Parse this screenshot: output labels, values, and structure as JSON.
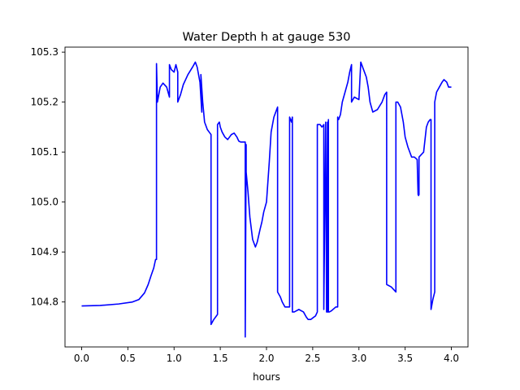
{
  "chart_data": {
    "type": "line",
    "title": "Water Depth h at gauge 530",
    "xlabel": "hours",
    "ylabel": "",
    "xlim": [
      -0.18,
      4.18
    ],
    "ylim": [
      104.71,
      105.31
    ],
    "xticks": [
      0.0,
      0.5,
      1.0,
      1.5,
      2.0,
      2.5,
      3.0,
      3.5,
      4.0
    ],
    "xtick_labels": [
      "0.0",
      "0.5",
      "1.0",
      "1.5",
      "2.0",
      "2.5",
      "3.0",
      "3.5",
      "4.0"
    ],
    "yticks": [
      104.8,
      104.9,
      105.0,
      105.1,
      105.2,
      105.3
    ],
    "ytick_labels": [
      "104.8",
      "104.9",
      "105.0",
      "105.1",
      "105.2",
      "105.3"
    ],
    "grid": false,
    "series": [
      {
        "color": "#0000ff",
        "x": [
          0.0,
          0.2,
          0.4,
          0.55,
          0.62,
          0.68,
          0.72,
          0.75,
          0.78,
          0.8,
          0.81,
          0.81,
          0.82,
          0.85,
          0.88,
          0.92,
          0.95,
          0.95,
          0.97,
          1.0,
          1.02,
          1.04,
          1.04,
          1.07,
          1.1,
          1.15,
          1.2,
          1.23,
          1.25,
          1.28,
          1.3,
          1.29,
          1.31,
          1.33,
          1.36,
          1.38,
          1.4,
          1.4,
          1.43,
          1.45,
          1.47,
          1.47,
          1.49,
          1.5,
          1.52,
          1.55,
          1.58,
          1.6,
          1.62,
          1.65,
          1.68,
          1.7,
          1.72,
          1.75,
          1.77,
          1.77,
          1.78,
          1.78,
          1.8,
          1.82,
          1.85,
          1.88,
          1.9,
          1.93,
          1.95,
          1.97,
          2.0,
          2.03,
          2.05,
          2.08,
          2.1,
          2.12,
          2.12,
          2.15,
          2.17,
          2.2,
          2.22,
          2.25,
          2.25,
          2.27,
          2.28,
          2.28,
          2.3,
          2.35,
          2.4,
          2.43,
          2.45,
          2.48,
          2.5,
          2.53,
          2.55,
          2.55,
          2.58,
          2.6,
          2.62,
          2.62,
          2.64,
          2.65,
          2.66,
          2.66,
          2.67,
          2.67,
          2.68,
          2.68,
          2.7,
          2.75,
          2.77,
          2.77,
          2.78,
          2.8,
          2.82,
          2.85,
          2.88,
          2.9,
          2.92,
          2.92,
          2.95,
          3.0,
          3.02,
          3.05,
          3.08,
          3.1,
          3.12,
          3.15,
          3.2,
          3.25,
          3.28,
          3.3,
          3.3,
          3.35,
          3.4,
          3.4,
          3.42,
          3.45,
          3.48,
          3.5,
          3.53,
          3.57,
          3.6,
          3.63,
          3.64,
          3.645,
          3.65,
          3.65,
          3.7,
          3.73,
          3.75,
          3.77,
          3.78,
          3.78,
          3.8,
          3.82,
          3.82,
          3.84,
          3.87,
          3.9,
          3.92,
          3.95,
          3.97,
          4.0
        ],
        "y": [
          104.792,
          104.793,
          104.796,
          104.8,
          104.805,
          104.818,
          104.835,
          104.852,
          104.868,
          104.885,
          104.885,
          105.277,
          105.2,
          105.23,
          105.238,
          105.23,
          105.21,
          105.275,
          105.265,
          105.26,
          105.275,
          105.26,
          105.2,
          105.215,
          105.235,
          105.255,
          105.27,
          105.28,
          105.27,
          105.24,
          105.18,
          105.255,
          105.2,
          105.16,
          105.145,
          105.14,
          105.135,
          104.755,
          104.765,
          104.77,
          104.775,
          105.155,
          105.16,
          105.15,
          105.14,
          105.13,
          105.125,
          105.13,
          105.135,
          105.138,
          105.13,
          105.122,
          105.12,
          105.12,
          105.12,
          104.73,
          105.115,
          105.06,
          105.02,
          104.97,
          104.925,
          104.91,
          104.92,
          104.945,
          104.96,
          104.98,
          105.0,
          105.08,
          105.14,
          105.17,
          105.18,
          105.19,
          104.82,
          104.81,
          104.8,
          104.79,
          104.79,
          104.79,
          105.17,
          105.16,
          105.17,
          104.78,
          104.78,
          104.785,
          104.78,
          104.77,
          104.765,
          104.765,
          104.768,
          104.772,
          104.78,
          105.155,
          105.155,
          105.15,
          105.155,
          104.785,
          105.16,
          104.78,
          105.16,
          104.78,
          105.165,
          104.78,
          104.78,
          104.78,
          104.782,
          104.79,
          104.79,
          105.17,
          105.165,
          105.175,
          105.2,
          105.22,
          105.24,
          105.26,
          105.275,
          105.2,
          105.21,
          105.205,
          105.28,
          105.265,
          105.25,
          105.23,
          105.2,
          105.18,
          105.185,
          105.2,
          105.215,
          105.22,
          104.835,
          104.83,
          104.82,
          105.2,
          105.2,
          105.19,
          105.16,
          105.13,
          105.11,
          105.09,
          105.09,
          105.085,
          105.015,
          105.013,
          105.015,
          105.09,
          105.1,
          105.15,
          105.16,
          105.165,
          105.165,
          104.785,
          104.805,
          104.82,
          105.2,
          105.22,
          105.23,
          105.24,
          105.245,
          105.24,
          105.23,
          105.23
        ]
      }
    ]
  }
}
